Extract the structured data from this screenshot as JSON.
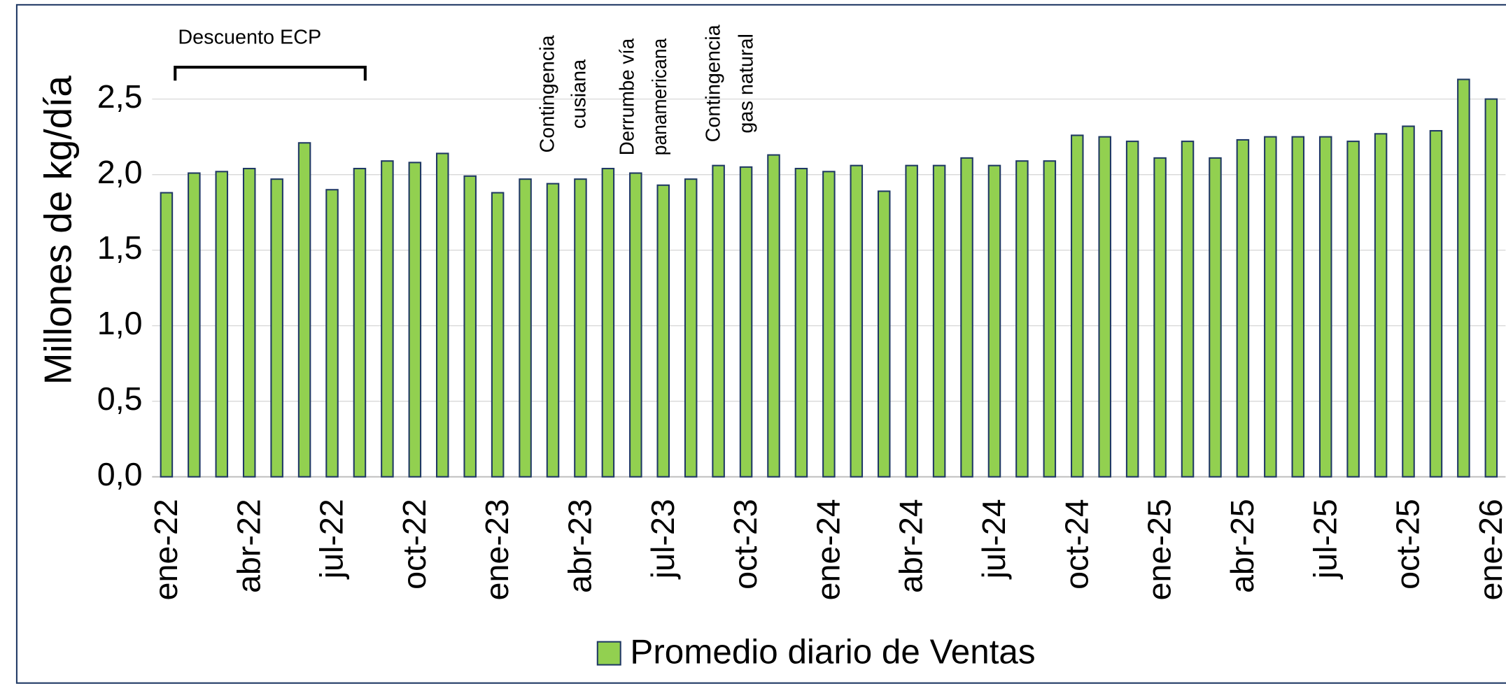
{
  "chart_data": {
    "type": "bar",
    "y_label": "Millones de kg/día",
    "categories": [
      "ene-22",
      null,
      null,
      "abr-22",
      null,
      null,
      "jul-22",
      null,
      null,
      "oct-22",
      null,
      null,
      "ene-23",
      null,
      null,
      "abr-23",
      null,
      null,
      "jul-23",
      null,
      null,
      "oct-23",
      null,
      null,
      "ene-24",
      null,
      null,
      "abr-24",
      null,
      null,
      "jul-24",
      null,
      null,
      "oct-24",
      null,
      null,
      "ene-25",
      null,
      null,
      "abr-25",
      null,
      null,
      "jul-25",
      null,
      null,
      "oct-25",
      null,
      null,
      "ene-26"
    ],
    "series": [
      {
        "name": "Promedio diario de Ventas",
        "color": "#92d050",
        "values": [
          1.88,
          2.01,
          2.02,
          2.04,
          1.97,
          2.21,
          1.9,
          2.04,
          2.09,
          2.08,
          2.14,
          1.99,
          1.88,
          1.97,
          1.94,
          1.97,
          2.04,
          2.01,
          1.93,
          1.97,
          2.06,
          2.05,
          2.13,
          2.04,
          2.02,
          2.06,
          1.89,
          2.06,
          2.06,
          2.11,
          2.06,
          2.09,
          2.09,
          2.26,
          2.25,
          2.22,
          2.11,
          2.22,
          2.11,
          2.23,
          2.25,
          2.25,
          2.25,
          2.22,
          2.27,
          2.32,
          2.29,
          2.63,
          2.5
        ]
      }
    ],
    "ylim": [
      0,
      2.8
    ],
    "yticks": [
      {
        "value": 0,
        "label": "0,0"
      },
      {
        "value": 0.5,
        "label": "0,5"
      },
      {
        "value": 1,
        "label": "1,0"
      },
      {
        "value": 1.5,
        "label": "1,5"
      },
      {
        "value": 2,
        "label": "2,0"
      },
      {
        "value": 2.5,
        "label": "2,5"
      }
    ],
    "grid": true,
    "legend": "bottom",
    "annotations": [
      {
        "lines": [
          "Descuento ECP"
        ]
      },
      {
        "lines": [
          "Contingencia",
          "cusiana"
        ]
      },
      {
        "lines": [
          "Derrumbe vía",
          "panamericana"
        ]
      },
      {
        "lines": [
          "Contingencia",
          "gas natural"
        ]
      }
    ]
  }
}
